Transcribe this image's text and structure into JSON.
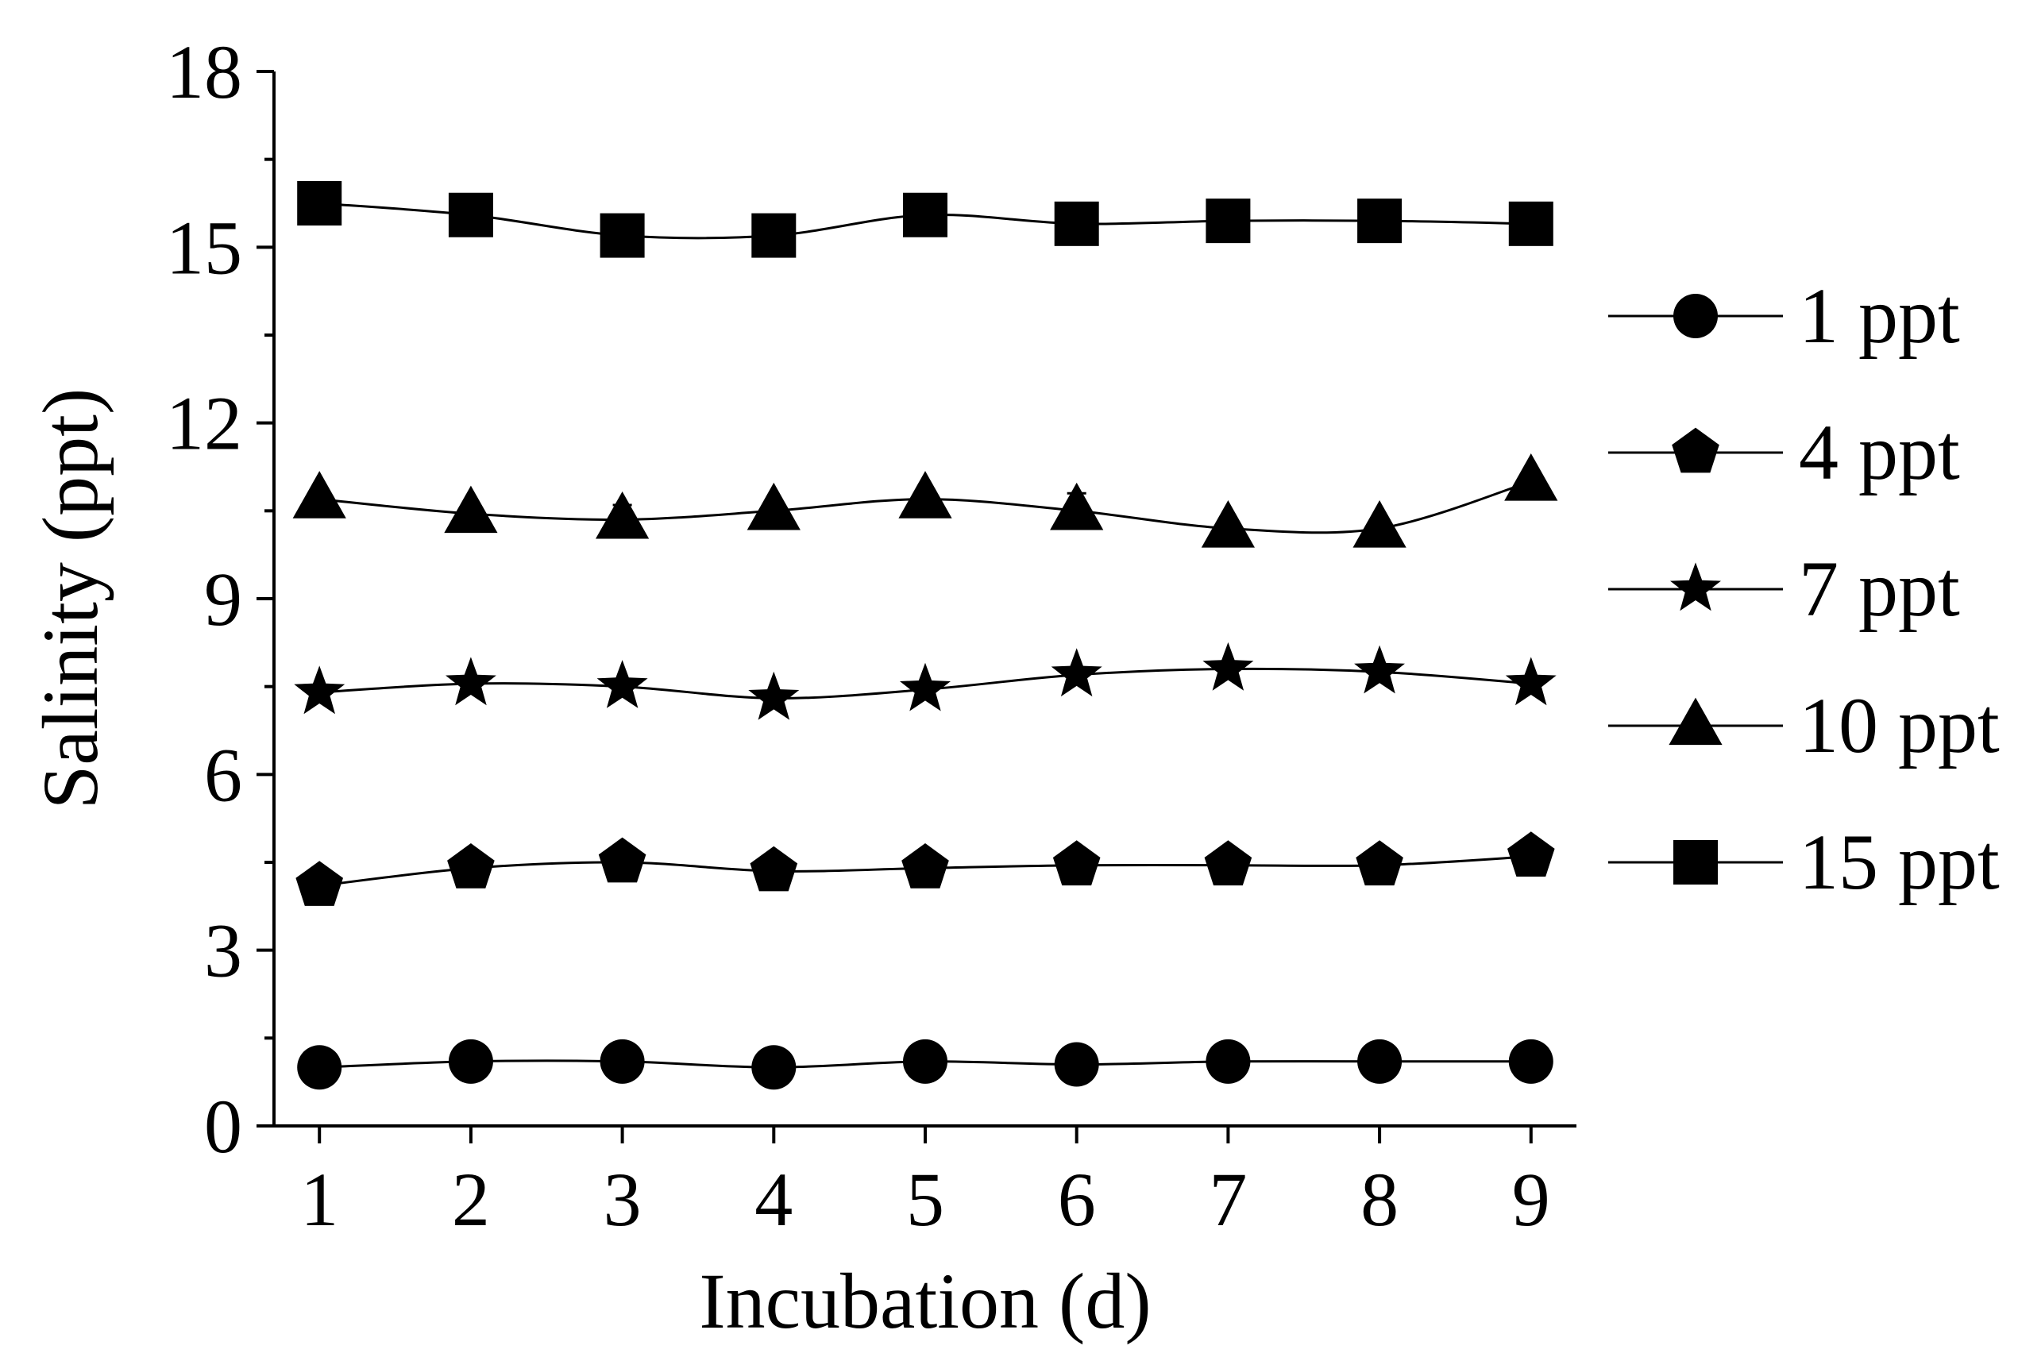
{
  "chart_data": {
    "type": "line",
    "title": "",
    "xlabel": "Incubation (d)",
    "ylabel": "Salinity (ppt)",
    "x": [
      1,
      2,
      3,
      4,
      5,
      6,
      7,
      8,
      9
    ],
    "xticks": [
      "1",
      "2",
      "3",
      "4",
      "5",
      "6",
      "7",
      "8",
      "9"
    ],
    "xlim": [
      0.7,
      9.3
    ],
    "ylim": [
      0,
      18
    ],
    "yticks": [
      "0",
      "3",
      "6",
      "9",
      "12",
      "15",
      "18"
    ],
    "grid": false,
    "legend_position": "right",
    "series": [
      {
        "name": "1 ppt",
        "marker": "circle",
        "values": [
          1.0,
          1.1,
          1.1,
          1.0,
          1.1,
          1.05,
          1.1,
          1.1,
          1.1
        ],
        "errors": [
          0.05,
          0.05,
          0.05,
          0.05,
          0.05,
          0.05,
          0.05,
          0.05,
          0.05
        ]
      },
      {
        "name": "4 ppt",
        "marker": "pentagon",
        "values": [
          4.1,
          4.4,
          4.5,
          4.35,
          4.4,
          4.45,
          4.45,
          4.45,
          4.6
        ],
        "errors": [
          0.05,
          0.05,
          0.05,
          0.08,
          0.05,
          0.05,
          0.05,
          0.05,
          0.05
        ]
      },
      {
        "name": "7 ppt",
        "marker": "star",
        "values": [
          7.4,
          7.55,
          7.5,
          7.3,
          7.45,
          7.7,
          7.8,
          7.75,
          7.55
        ],
        "errors": [
          0.05,
          0.12,
          0.05,
          0.05,
          0.05,
          0.05,
          0.05,
          0.05,
          0.05
        ]
      },
      {
        "name": "10 ppt",
        "marker": "triangle",
        "values": [
          10.7,
          10.45,
          10.35,
          10.5,
          10.7,
          10.5,
          10.2,
          10.2,
          11.0
        ],
        "errors": [
          0.05,
          0.05,
          0.25,
          0.05,
          0.05,
          0.3,
          0.05,
          0.05,
          0.05
        ]
      },
      {
        "name": "15 ppt",
        "marker": "square",
        "values": [
          15.75,
          15.55,
          15.2,
          15.2,
          15.55,
          15.4,
          15.45,
          15.45,
          15.4
        ],
        "errors": [
          0.05,
          0.05,
          0.05,
          0.2,
          0.05,
          0.05,
          0.05,
          0.05,
          0.05
        ]
      }
    ]
  }
}
